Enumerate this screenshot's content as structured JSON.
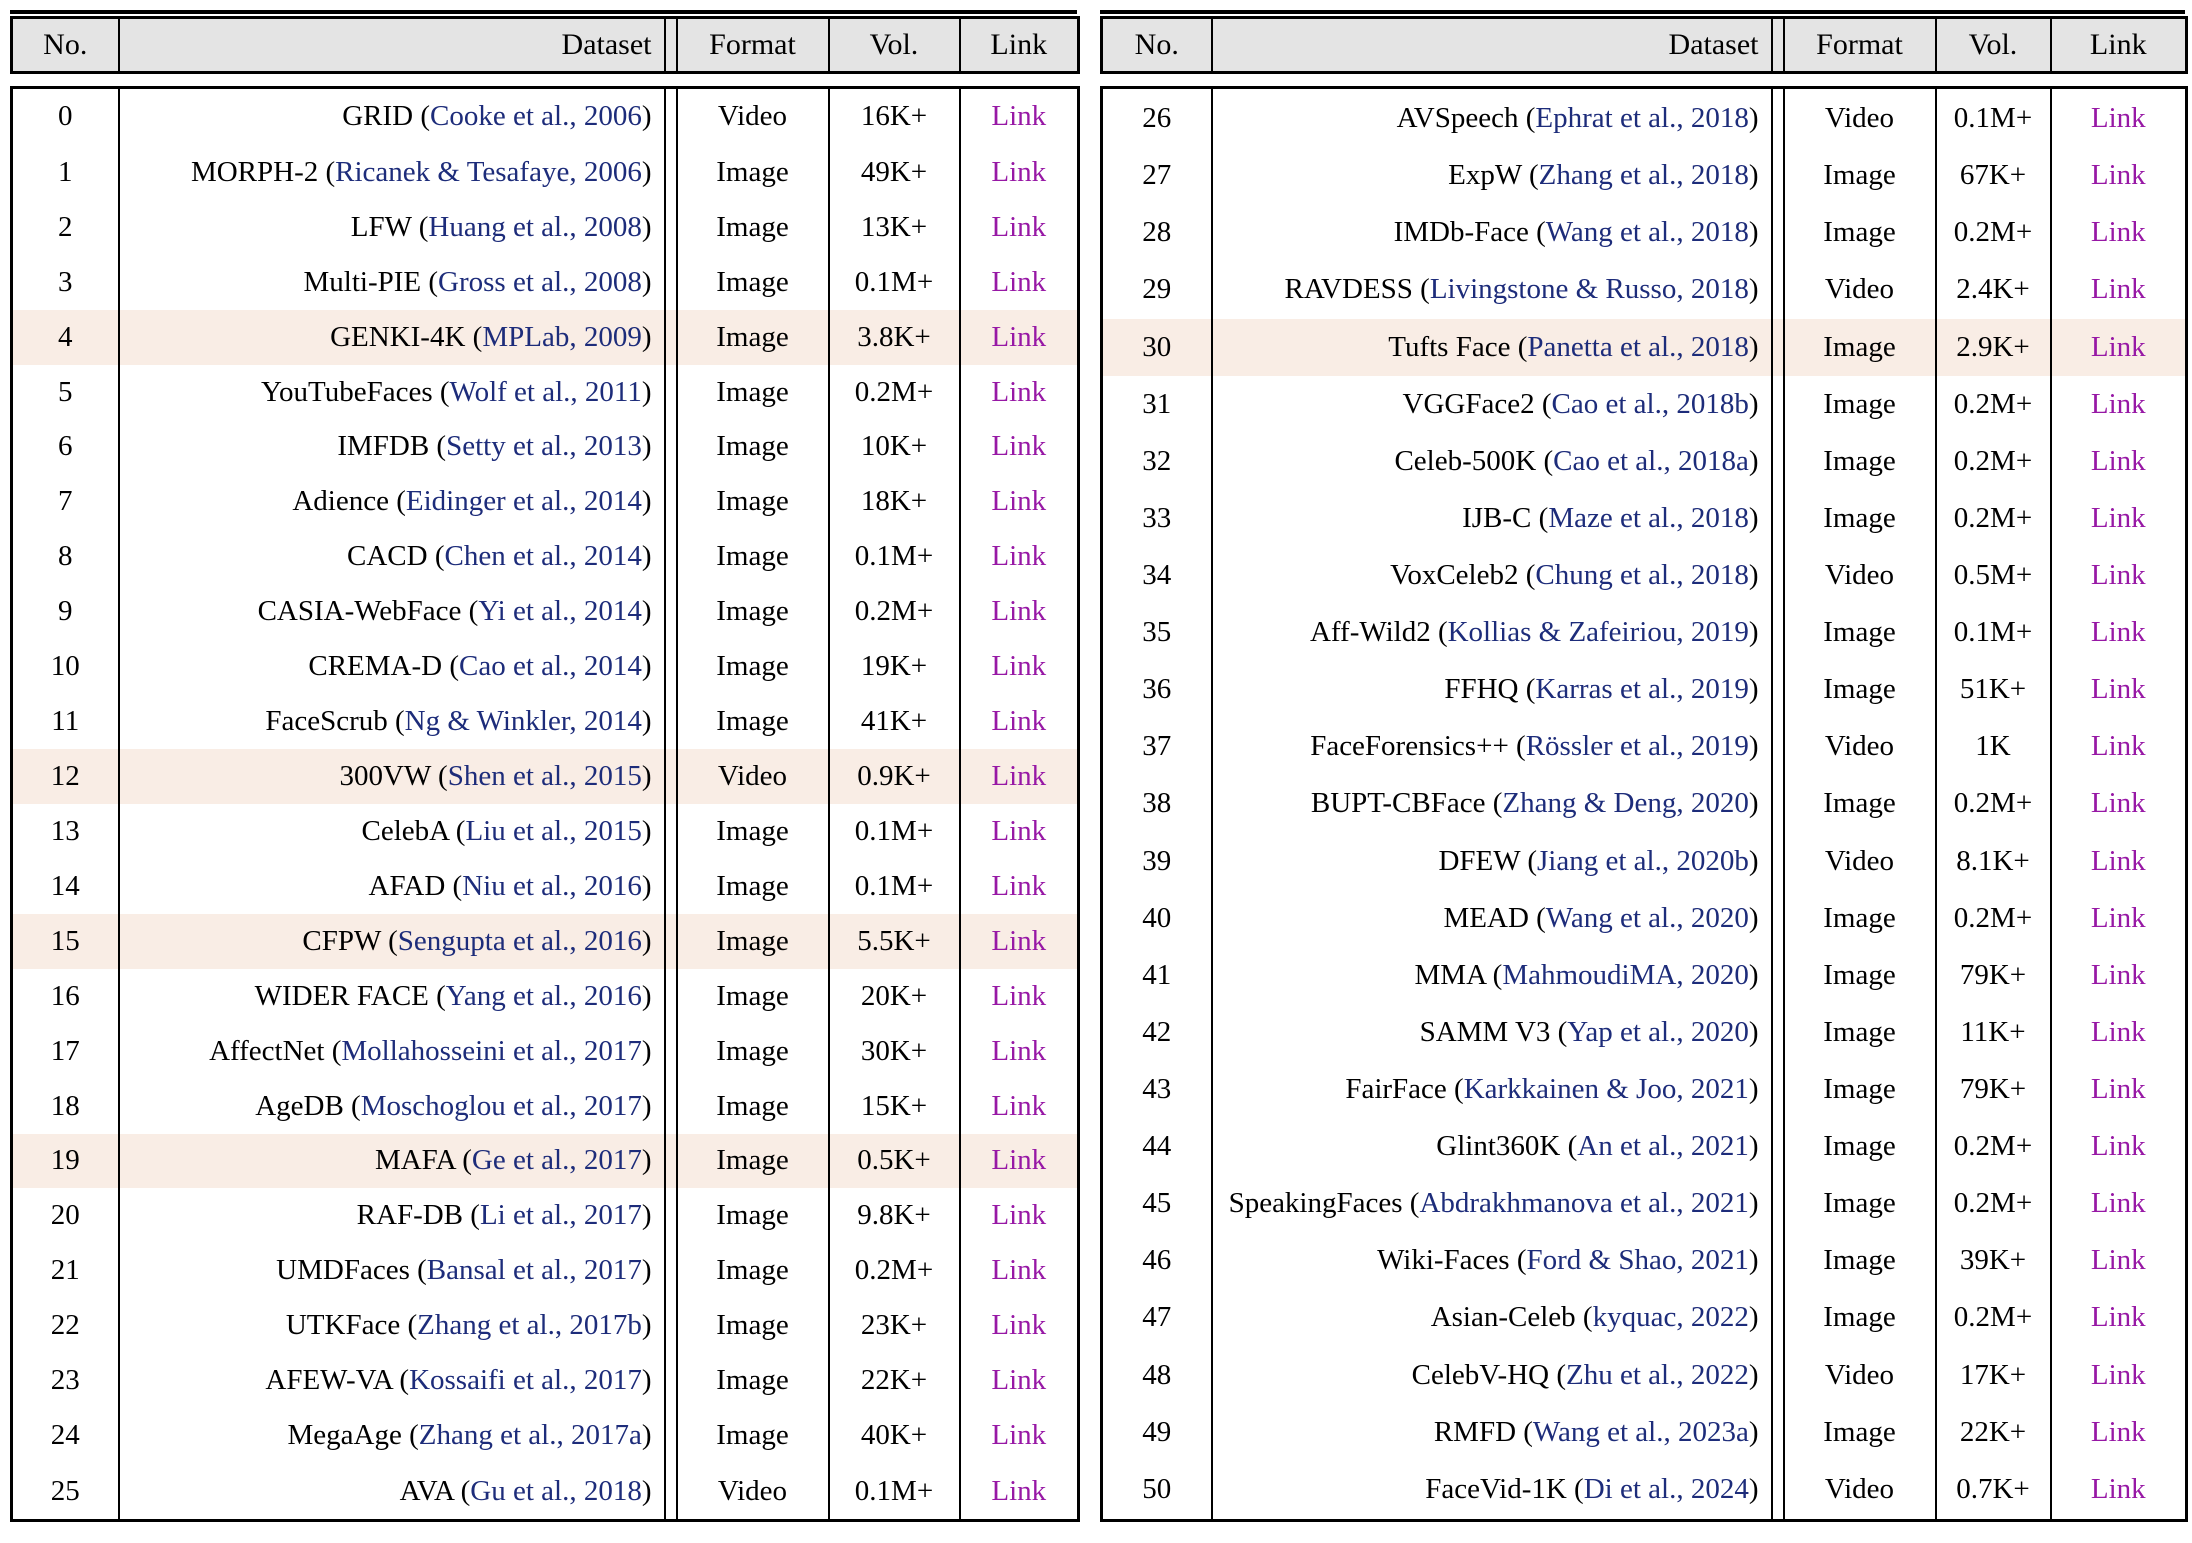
{
  "header": {
    "no": "No.",
    "dataset": "Dataset",
    "format": "Format",
    "vol": "Vol.",
    "link": "Link"
  },
  "link_label": "Link",
  "colors": {
    "header_bg": "#e4e4e4",
    "row_highlight_bg": "#f9ede5",
    "citation_text": "#1d2c7a",
    "link_text": "#9718a5",
    "border": "#000000"
  },
  "tables": [
    {
      "rows": [
        {
          "no": 0,
          "name": "GRID",
          "cite": "Cooke et al., 2006",
          "format": "Video",
          "vol": "16K+",
          "highlight": false
        },
        {
          "no": 1,
          "name": "MORPH-2",
          "cite": "Ricanek & Tesafaye, 2006",
          "format": "Image",
          "vol": "49K+",
          "highlight": false
        },
        {
          "no": 2,
          "name": "LFW",
          "cite": "Huang et al., 2008",
          "format": "Image",
          "vol": "13K+",
          "highlight": false
        },
        {
          "no": 3,
          "name": "Multi-PIE",
          "cite": "Gross et al., 2008",
          "format": "Image",
          "vol": "0.1M+",
          "highlight": false
        },
        {
          "no": 4,
          "name": "GENKI-4K",
          "cite": "MPLab, 2009",
          "format": "Image",
          "vol": "3.8K+",
          "highlight": true
        },
        {
          "no": 5,
          "name": "YouTubeFaces",
          "cite": "Wolf et al., 2011",
          "format": "Image",
          "vol": "0.2M+",
          "highlight": false
        },
        {
          "no": 6,
          "name": "IMFDB",
          "cite": "Setty et al., 2013",
          "format": "Image",
          "vol": "10K+",
          "highlight": false
        },
        {
          "no": 7,
          "name": "Adience",
          "cite": "Eidinger et al., 2014",
          "format": "Image",
          "vol": "18K+",
          "highlight": false
        },
        {
          "no": 8,
          "name": "CACD",
          "cite": "Chen et al., 2014",
          "format": "Image",
          "vol": "0.1M+",
          "highlight": false
        },
        {
          "no": 9,
          "name": "CASIA-WebFace",
          "cite": "Yi et al., 2014",
          "format": "Image",
          "vol": "0.2M+",
          "highlight": false
        },
        {
          "no": 10,
          "name": "CREMA-D",
          "cite": "Cao et al., 2014",
          "format": "Image",
          "vol": "19K+",
          "highlight": false
        },
        {
          "no": 11,
          "name": "FaceScrub",
          "cite": "Ng & Winkler, 2014",
          "format": "Image",
          "vol": "41K+",
          "highlight": false
        },
        {
          "no": 12,
          "name": "300VW",
          "cite": "Shen et al., 2015",
          "format": "Video",
          "vol": "0.9K+",
          "highlight": true
        },
        {
          "no": 13,
          "name": "CelebA",
          "cite": "Liu et al., 2015",
          "format": "Image",
          "vol": "0.1M+",
          "highlight": false
        },
        {
          "no": 14,
          "name": "AFAD",
          "cite": "Niu et al., 2016",
          "format": "Image",
          "vol": "0.1M+",
          "highlight": false
        },
        {
          "no": 15,
          "name": "CFPW",
          "cite": "Sengupta et al., 2016",
          "format": "Image",
          "vol": "5.5K+",
          "highlight": true
        },
        {
          "no": 16,
          "name": "WIDER FACE",
          "cite": "Yang et al., 2016",
          "format": "Image",
          "vol": "20K+",
          "highlight": false
        },
        {
          "no": 17,
          "name": "AffectNet",
          "cite": "Mollahosseini et al., 2017",
          "format": "Image",
          "vol": "30K+",
          "highlight": false
        },
        {
          "no": 18,
          "name": "AgeDB",
          "cite": "Moschoglou et al., 2017",
          "format": "Image",
          "vol": "15K+",
          "highlight": false
        },
        {
          "no": 19,
          "name": "MAFA",
          "cite": "Ge et al., 2017",
          "format": "Image",
          "vol": "0.5K+",
          "highlight": true
        },
        {
          "no": 20,
          "name": "RAF-DB",
          "cite": "Li et al., 2017",
          "format": "Image",
          "vol": "9.8K+",
          "highlight": false
        },
        {
          "no": 21,
          "name": "UMDFaces",
          "cite": "Bansal et al., 2017",
          "format": "Image",
          "vol": "0.2M+",
          "highlight": false
        },
        {
          "no": 22,
          "name": "UTKFace",
          "cite": "Zhang et al., 2017b",
          "format": "Image",
          "vol": "23K+",
          "highlight": false
        },
        {
          "no": 23,
          "name": "AFEW-VA",
          "cite": "Kossaifi et al., 2017",
          "format": "Image",
          "vol": "22K+",
          "highlight": false
        },
        {
          "no": 24,
          "name": "MegaAge",
          "cite": "Zhang et al., 2017a",
          "format": "Image",
          "vol": "40K+",
          "highlight": false
        },
        {
          "no": 25,
          "name": "AVA",
          "cite": "Gu et al., 2018",
          "format": "Video",
          "vol": "0.1M+",
          "highlight": false
        }
      ]
    },
    {
      "rows": [
        {
          "no": 26,
          "name": "AVSpeech",
          "cite": "Ephrat et al., 2018",
          "format": "Video",
          "vol": "0.1M+",
          "highlight": false
        },
        {
          "no": 27,
          "name": "ExpW",
          "cite": "Zhang et al., 2018",
          "format": "Image",
          "vol": "67K+",
          "highlight": false
        },
        {
          "no": 28,
          "name": "IMDb-Face",
          "cite": "Wang et al., 2018",
          "format": "Image",
          "vol": "0.2M+",
          "highlight": false
        },
        {
          "no": 29,
          "name": "RAVDESS",
          "cite": "Livingstone & Russo, 2018",
          "format": "Video",
          "vol": "2.4K+",
          "highlight": false
        },
        {
          "no": 30,
          "name": "Tufts Face",
          "cite": "Panetta et al., 2018",
          "format": "Image",
          "vol": "2.9K+",
          "highlight": true
        },
        {
          "no": 31,
          "name": "VGGFace2",
          "cite": "Cao et al., 2018b",
          "format": "Image",
          "vol": "0.2M+",
          "highlight": false
        },
        {
          "no": 32,
          "name": "Celeb-500K",
          "cite": "Cao et al., 2018a",
          "format": "Image",
          "vol": "0.2M+",
          "highlight": false
        },
        {
          "no": 33,
          "name": "IJB-C",
          "cite": "Maze et al., 2018",
          "format": "Image",
          "vol": "0.2M+",
          "highlight": false
        },
        {
          "no": 34,
          "name": "VoxCeleb2",
          "cite": "Chung et al., 2018",
          "format": "Video",
          "vol": "0.5M+",
          "highlight": false
        },
        {
          "no": 35,
          "name": "Aff-Wild2",
          "cite": "Kollias & Zafeiriou, 2019",
          "format": "Image",
          "vol": "0.1M+",
          "highlight": false
        },
        {
          "no": 36,
          "name": "FFHQ",
          "cite": "Karras et al., 2019",
          "format": "Image",
          "vol": "51K+",
          "highlight": false
        },
        {
          "no": 37,
          "name": "FaceForensics++",
          "cite": "Rössler et al., 2019",
          "format": "Video",
          "vol": "1K",
          "highlight": false
        },
        {
          "no": 38,
          "name": "BUPT-CBFace",
          "cite": "Zhang & Deng, 2020",
          "format": "Image",
          "vol": "0.2M+",
          "highlight": false
        },
        {
          "no": 39,
          "name": "DFEW",
          "cite": "Jiang et al., 2020b",
          "format": "Video",
          "vol": "8.1K+",
          "highlight": false
        },
        {
          "no": 40,
          "name": "MEAD",
          "cite": "Wang et al., 2020",
          "format": "Image",
          "vol": "0.2M+",
          "highlight": false
        },
        {
          "no": 41,
          "name": "MMA",
          "cite": "MahmoudiMA, 2020",
          "format": "Image",
          "vol": "79K+",
          "highlight": false
        },
        {
          "no": 42,
          "name": "SAMM V3",
          "cite": "Yap et al., 2020",
          "format": "Image",
          "vol": "11K+",
          "highlight": false
        },
        {
          "no": 43,
          "name": "FairFace",
          "cite": "Karkkainen & Joo, 2021",
          "format": "Image",
          "vol": "79K+",
          "highlight": false
        },
        {
          "no": 44,
          "name": "Glint360K",
          "cite": "An et al., 2021",
          "format": "Image",
          "vol": "0.2M+",
          "highlight": false
        },
        {
          "no": 45,
          "name": "SpeakingFaces",
          "cite": "Abdrakhmanova et al., 2021",
          "format": "Image",
          "vol": "0.2M+",
          "highlight": false
        },
        {
          "no": 46,
          "name": "Wiki-Faces",
          "cite": "Ford & Shao, 2021",
          "format": "Image",
          "vol": "39K+",
          "highlight": false
        },
        {
          "no": 47,
          "name": "Asian-Celeb",
          "cite": "kyquac, 2022",
          "format": "Image",
          "vol": "0.2M+",
          "highlight": false
        },
        {
          "no": 48,
          "name": "CelebV-HQ",
          "cite": "Zhu et al., 2022",
          "format": "Video",
          "vol": "17K+",
          "highlight": false
        },
        {
          "no": 49,
          "name": "RMFD",
          "cite": "Wang et al., 2023a",
          "format": "Image",
          "vol": "22K+",
          "highlight": false
        },
        {
          "no": 50,
          "name": "FaceVid-1K",
          "cite": "Di et al., 2024",
          "format": "Video",
          "vol": "0.7K+",
          "highlight": false
        }
      ]
    }
  ]
}
